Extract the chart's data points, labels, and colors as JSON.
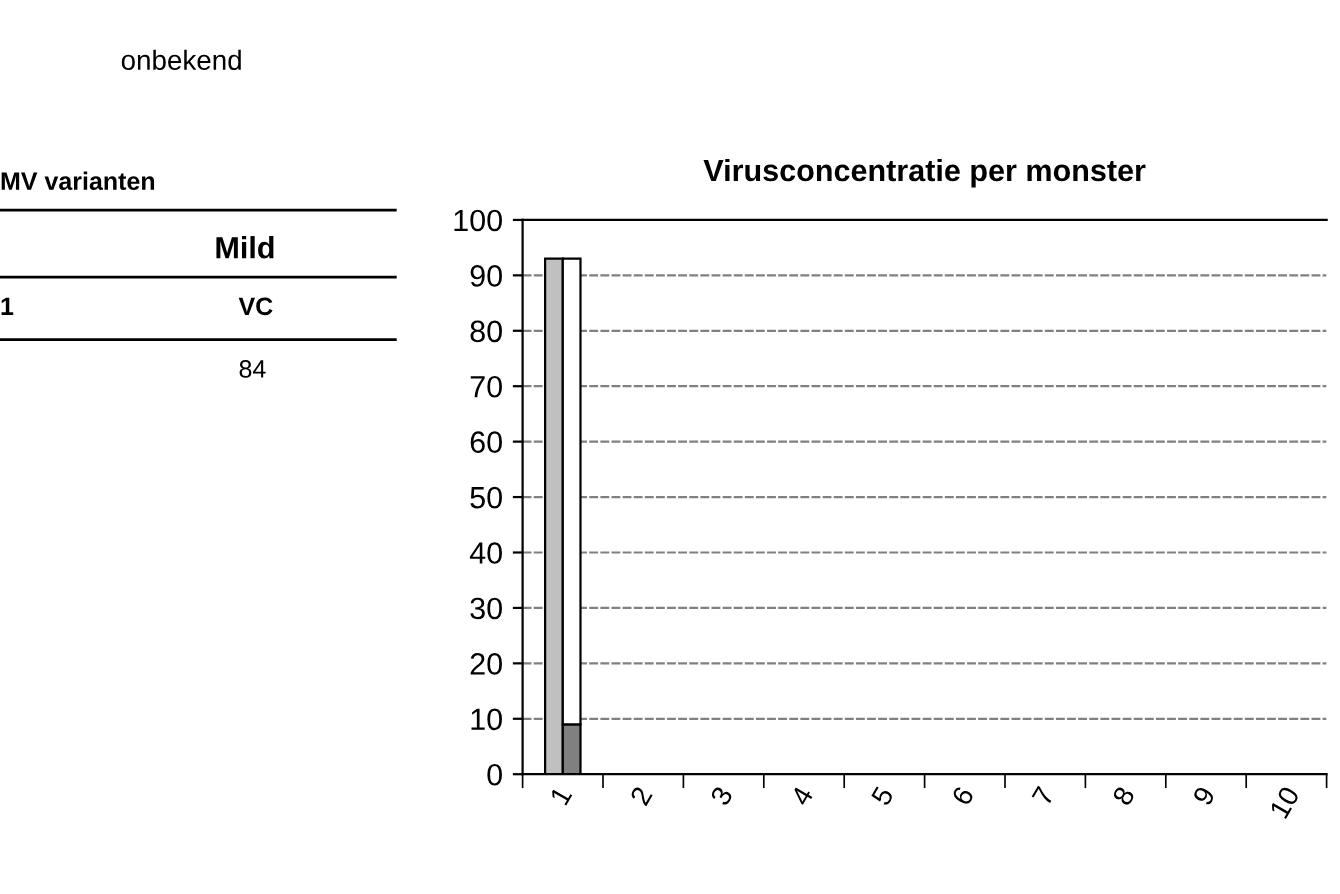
{
  "chart_data": {
    "type": "bar",
    "title": "Virusconcentratie per monster",
    "categories": [
      "1",
      "2",
      "3",
      "4",
      "5",
      "6",
      "7",
      "8",
      "9",
      "10"
    ],
    "series": [
      {
        "color": "#c0c0c0",
        "values": [
          93,
          null,
          null,
          null,
          null,
          null,
          null,
          null,
          null,
          null
        ]
      },
      {
        "color": "#808080",
        "values": [
          9,
          null,
          null,
          null,
          null,
          null,
          null,
          null,
          null,
          null
        ]
      },
      {
        "color": "#ffffff",
        "base": [
          9,
          null,
          null,
          null,
          null,
          null,
          null,
          null,
          null,
          null
        ],
        "values": [
          84,
          null,
          null,
          null,
          null,
          null,
          null,
          null,
          null,
          null
        ]
      }
    ],
    "ylim": [
      0,
      100
    ],
    "yticks": [
      0,
      10,
      20,
      30,
      40,
      50,
      60,
      70,
      80,
      90,
      100
    ],
    "grid": "y",
    "annotations": [
      "onbekend",
      "MV varianten",
      "Mild",
      "1",
      "VC",
      "84"
    ]
  }
}
